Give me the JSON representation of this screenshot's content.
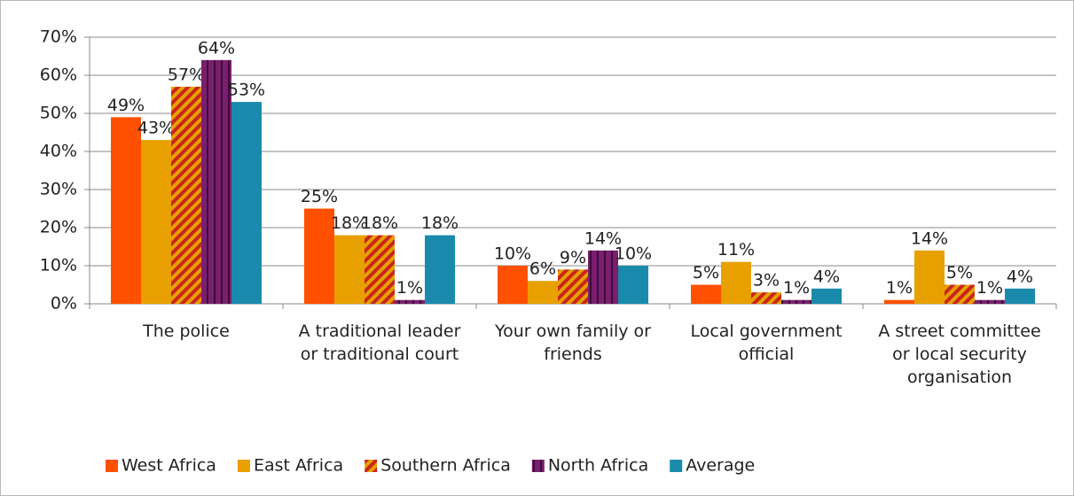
{
  "chart_data": {
    "type": "bar",
    "categories": [
      "The police",
      "A traditional leader or traditional court",
      "Your own family or friends",
      "Local government official",
      "A street committee or local security organisation"
    ],
    "series": [
      {
        "name": "West Africa",
        "color": "#ff5000",
        "values": [
          49,
          25,
          10,
          5,
          1
        ],
        "value_labels": [
          "49%",
          "25%",
          "10%",
          "5%",
          "1%"
        ]
      },
      {
        "name": "East Africa",
        "color": "#e8a000",
        "values": [
          43,
          18,
          6,
          11,
          14
        ],
        "value_labels": [
          "43%",
          "18%",
          "6%",
          "11%",
          "14%"
        ]
      },
      {
        "name": "Southern Africa",
        "color": "#e8a000",
        "pattern": "diagonal",
        "pattern_color": "#c8261c",
        "values": [
          57,
          18,
          9,
          3,
          5
        ],
        "value_labels": [
          "57%",
          "18%",
          "9%",
          "3%",
          "5%"
        ]
      },
      {
        "name": "North Africa",
        "color": "#7a1f6e",
        "pattern": "vertical",
        "pattern_color": "#3e0c38",
        "values": [
          64,
          1,
          14,
          1,
          1
        ],
        "value_labels": [
          "64%",
          "1%",
          "14%",
          "1%",
          "1%"
        ]
      },
      {
        "name": "Average",
        "color": "#1a8aac",
        "values": [
          53,
          18,
          10,
          4,
          4
        ],
        "value_labels": [
          "53%",
          "18%",
          "10%",
          "4%",
          "4%"
        ]
      }
    ],
    "ylim": [
      0,
      70
    ],
    "yticks": [
      {
        "value": 0,
        "label": "0%"
      },
      {
        "value": 10,
        "label": "10%"
      },
      {
        "value": 20,
        "label": "20%"
      },
      {
        "value": 30,
        "label": "30%"
      },
      {
        "value": 40,
        "label": "40%"
      },
      {
        "value": 50,
        "label": "50%"
      },
      {
        "value": 60,
        "label": "60%"
      },
      {
        "value": 70,
        "label": "70%"
      }
    ],
    "grid": true,
    "legend": "bottom"
  }
}
